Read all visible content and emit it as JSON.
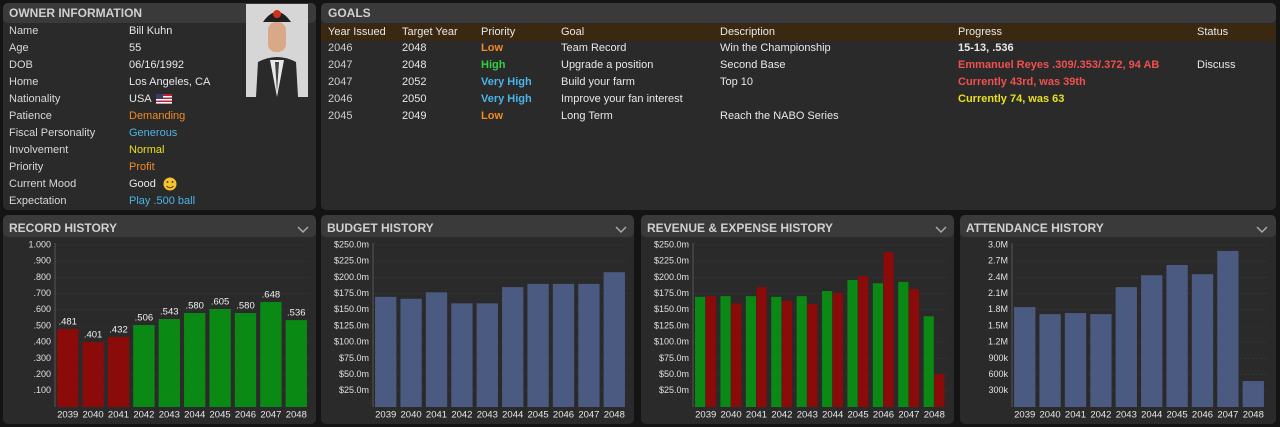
{
  "owner": {
    "title": "OWNER INFORMATION",
    "rows": [
      {
        "label": "Name",
        "value": "Bill Kuhn",
        "color": "#e8e8e8"
      },
      {
        "label": "Age",
        "value": "55",
        "color": "#e8e8e8"
      },
      {
        "label": "DOB",
        "value": "06/16/1992",
        "color": "#e8e8e8"
      },
      {
        "label": "Home",
        "value": "Los Angeles, CA",
        "color": "#e8e8e8"
      },
      {
        "label": "Nationality",
        "value": "USA",
        "color": "#e8e8e8"
      },
      {
        "label": "Patience",
        "value": "Demanding",
        "color": "#f08a24"
      },
      {
        "label": "Fiscal Personality",
        "value": "Generous",
        "color": "#4cb4e8"
      },
      {
        "label": "Involvement",
        "value": "Normal",
        "color": "#e8e020"
      },
      {
        "label": "Priority",
        "value": "Profit",
        "color": "#f08a24"
      },
      {
        "label": "Current Mood",
        "value": "Good",
        "color": "#e8e8e8"
      },
      {
        "label": "Expectation",
        "value": "Play .500 ball",
        "color": "#4cb4e8"
      }
    ]
  },
  "goals": {
    "title": "GOALS",
    "columns": [
      "Year Issued",
      "Target Year",
      "Priority",
      "Goal",
      "Description",
      "Progress",
      "Status"
    ],
    "rows": [
      [
        "2046",
        "2048",
        "Low",
        "Team Record",
        "Win the Championship",
        "15-13, .536",
        null
      ],
      [
        "2047",
        "2048",
        "High",
        "Upgrade a position",
        "Second Base",
        "Emmanuel Reyes .309/.353/.372, 94 AB",
        "Discuss"
      ],
      [
        "2047",
        "2052",
        "Very High",
        "Build your farm",
        "Top 10",
        "Currently 43rd, was 39th",
        null
      ],
      [
        "2046",
        "2050",
        "Very High",
        "Improve your fan interest",
        null,
        "Currently 74, was 63",
        null
      ],
      [
        "2045",
        "2049",
        "Low",
        "Long Term",
        "Reach the NABO Series",
        null,
        null
      ]
    ],
    "priority_colors": [
      "#f08a24",
      "#30d040",
      "#4cb4e8",
      "#4cb4e8",
      "#f08a24"
    ],
    "progress_colors": [
      "#e8e8e8",
      "#f05050",
      "#f05050",
      "#e8e020",
      "#e8e8e8"
    ]
  },
  "chart_data": [
    {
      "type": "bar",
      "title": "RECORD HISTORY",
      "categories": [
        "2039",
        "2040",
        "2041",
        "2042",
        "2043",
        "2044",
        "2045",
        "2046",
        "2047",
        "2048"
      ],
      "values": [
        0.481,
        0.401,
        0.432,
        0.506,
        0.543,
        0.58,
        0.605,
        0.58,
        0.648,
        0.536
      ],
      "value_labels": [
        ".481",
        ".401",
        ".432",
        ".506",
        ".543",
        ".580",
        ".605",
        ".580",
        ".648",
        ".536"
      ],
      "colors": [
        "#8b0a0a",
        "#8b0a0a",
        "#8b0a0a",
        "#0a8a14",
        "#0a8a14",
        "#0a8a14",
        "#0a8a14",
        "#0a8a14",
        "#0a8a14",
        "#0a8a14"
      ],
      "ylim": [
        0,
        1
      ],
      "yticks": [
        {
          "value": 0.1,
          "label": ".100"
        },
        {
          "value": 0.2,
          "label": ".200"
        },
        {
          "value": 0.3,
          "label": ".300"
        },
        {
          "value": 0.4,
          "label": ".400"
        },
        {
          "value": 0.5,
          "label": ".500"
        },
        {
          "value": 0.6,
          "label": ".600"
        },
        {
          "value": 0.7,
          "label": ".700"
        },
        {
          "value": 0.8,
          "label": ".800"
        },
        {
          "value": 0.9,
          "label": ".900"
        },
        {
          "value": 1,
          "label": "1.000"
        }
      ],
      "grid": true
    },
    {
      "type": "bar",
      "title": "BUDGET HISTORY",
      "categories": [
        "2039",
        "2040",
        "2041",
        "2042",
        "2043",
        "2044",
        "2045",
        "2046",
        "2047",
        "2048"
      ],
      "values": [
        170,
        167,
        177,
        160,
        160,
        185,
        190,
        190,
        190,
        208
      ],
      "color": "#4a5a80",
      "ylim": [
        0,
        250
      ],
      "yticks": [
        {
          "value": 25,
          "label": "$25.0m"
        },
        {
          "value": 50,
          "label": "$50.0m"
        },
        {
          "value": 75,
          "label": "$75.0m"
        },
        {
          "value": 100,
          "label": "$100.0m"
        },
        {
          "value": 125,
          "label": "$125.0m"
        },
        {
          "value": 150,
          "label": "$150.0m"
        },
        {
          "value": 175,
          "label": "$175.0m"
        },
        {
          "value": 200,
          "label": "$200.0m"
        },
        {
          "value": 225,
          "label": "$225.0m"
        },
        {
          "value": 250,
          "label": "$250.0m"
        }
      ],
      "grid": true
    },
    {
      "type": "bar",
      "title": "REVENUE & EXPENSE HISTORY",
      "categories": [
        "2039",
        "2040",
        "2041",
        "2042",
        "2043",
        "2044",
        "2045",
        "2046",
        "2047",
        "2048"
      ],
      "series": [
        {
          "color": "#0a8a14",
          "values": [
            170,
            171,
            171,
            170,
            171,
            179,
            196,
            191,
            193,
            140
          ]
        },
        {
          "color": "#8b0a0a",
          "values": [
            171,
            160,
            185,
            164,
            159,
            176,
            202,
            239,
            182,
            51
          ]
        }
      ],
      "ylim": [
        0,
        250
      ],
      "yticks": [
        {
          "value": 25,
          "label": "$25.0m"
        },
        {
          "value": 50,
          "label": "$50.0m"
        },
        {
          "value": 75,
          "label": "$75.0m"
        },
        {
          "value": 100,
          "label": "$100.0m"
        },
        {
          "value": 125,
          "label": "$125.0m"
        },
        {
          "value": 150,
          "label": "$150.0m"
        },
        {
          "value": 175,
          "label": "$175.0m"
        },
        {
          "value": 200,
          "label": "$200.0m"
        },
        {
          "value": 225,
          "label": "$225.0m"
        },
        {
          "value": 250,
          "label": "$250.0m"
        }
      ],
      "grid": true
    },
    {
      "type": "bar",
      "title": "ATTENDANCE HISTORY",
      "categories": [
        "2039",
        "2040",
        "2041",
        "2042",
        "2043",
        "2044",
        "2045",
        "2046",
        "2047",
        "2048"
      ],
      "values": [
        1850000,
        1720000,
        1740000,
        1720000,
        2220000,
        2440000,
        2630000,
        2460000,
        2890000,
        480000
      ],
      "color": "#4a5a80",
      "ylim": [
        0,
        3000000
      ],
      "yticks": [
        {
          "value": 300000,
          "label": "300k"
        },
        {
          "value": 600000,
          "label": "600k"
        },
        {
          "value": 900000,
          "label": "900k"
        },
        {
          "value": 1200000,
          "label": "1.2M"
        },
        {
          "value": 1500000,
          "label": "1.5M"
        },
        {
          "value": 1800000,
          "label": "1.8M"
        },
        {
          "value": 2100000,
          "label": "2.1M"
        },
        {
          "value": 2400000,
          "label": "2.4M"
        },
        {
          "value": 2700000,
          "label": "2.7M"
        },
        {
          "value": 3000000,
          "label": "3.0M"
        }
      ],
      "grid": true
    }
  ]
}
